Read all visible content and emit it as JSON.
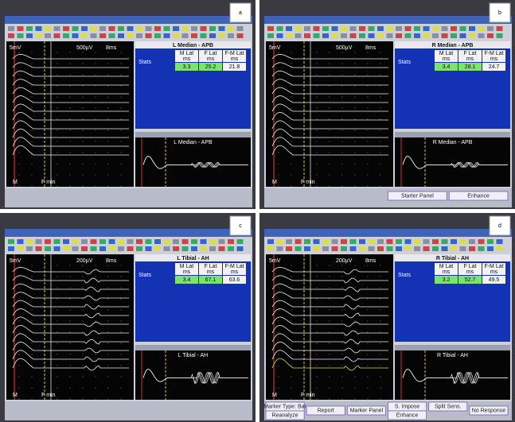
{
  "panels": [
    {
      "label": "a",
      "title": "L Median - APB",
      "stats_label": "Stats",
      "headers": [
        "M Lat",
        "F Lat",
        "F-M Lat"
      ],
      "unit": "ms",
      "values": [
        "3.3",
        "25.2",
        "21.8"
      ],
      "wave_title": "L Median - APB",
      "sensitivity": "5mV",
      "gain": "500µV",
      "sweep": "8ms",
      "markers": [
        "M",
        "F min"
      ],
      "buttons": []
    },
    {
      "label": "b",
      "title": "R Median - APB",
      "stats_label": "Stats",
      "headers": [
        "M Lat",
        "F Lat",
        "F-M Lat"
      ],
      "unit": "ms",
      "values": [
        "3.4",
        "28.1",
        "24.7"
      ],
      "wave_title": "R Median - APB",
      "sensitivity": "5mV",
      "gain": "500µV",
      "sweep": "8ms",
      "markers": [
        "M",
        "F min"
      ],
      "buttons": [
        "Starter Panel",
        "Enhance"
      ]
    },
    {
      "label": "c",
      "title": "L Tibial - AH",
      "stats_label": "Stats",
      "headers": [
        "M Lat",
        "F Lat",
        "F-M Lat"
      ],
      "unit": "ms",
      "values": [
        "3.4",
        "67.1",
        "63.6"
      ],
      "wave_title": "L Tibial - AH",
      "sensitivity": "5mV",
      "gain": "200µV",
      "sweep": "8ms",
      "markers": [
        "M",
        "F min"
      ],
      "buttons": []
    },
    {
      "label": "d",
      "title": "R Tibial - AH",
      "stats_label": "Stats",
      "headers": [
        "M Lat",
        "F Lat",
        "F-M Lat"
      ],
      "unit": "ms",
      "values": [
        "3.2",
        "52.7",
        "49.5"
      ],
      "wave_title": "R Tibial - AH",
      "sensitivity": "5mV",
      "gain": "200µV",
      "sweep": "8ms",
      "markers": [
        "M",
        "F min"
      ],
      "buttons": [
        "Marker Type: Bar",
        "Reanalyze",
        "Report",
        "Marker Panel",
        "S. Impose",
        "Enhance",
        "Split Sens.",
        "No Response"
      ]
    }
  ]
}
